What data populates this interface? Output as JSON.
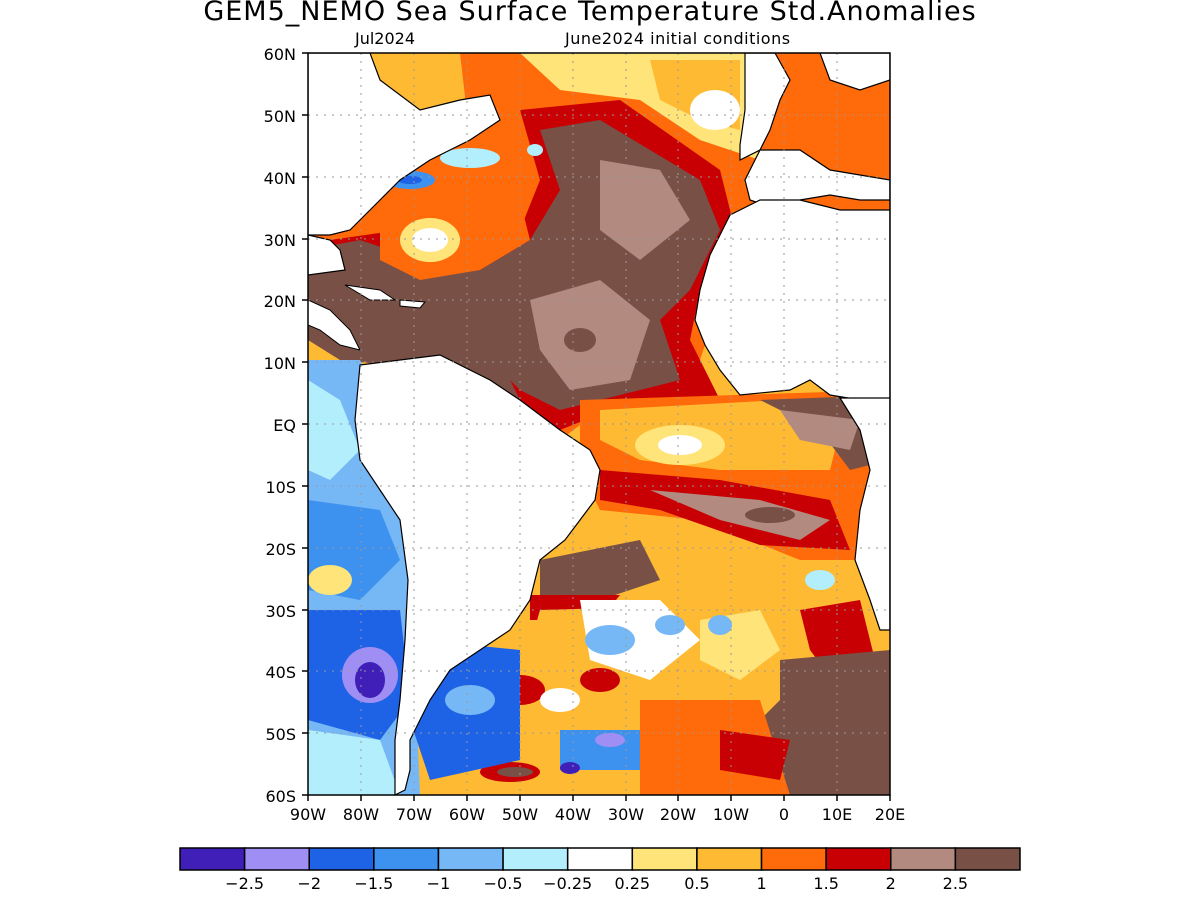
{
  "title": "GEM5_NEMO Sea Surface Temperature Std.Anomalies",
  "subtitle_left": "Jul2024",
  "subtitle_right": "June2024 initial conditions",
  "lat_labels": [
    "60N",
    "50N",
    "40N",
    "30N",
    "20N",
    "10N",
    "EQ",
    "10S",
    "20S",
    "30S",
    "40S",
    "50S",
    "60S"
  ],
  "lon_labels": [
    "90W",
    "80W",
    "70W",
    "60W",
    "50W",
    "40W",
    "30W",
    "20W",
    "10W",
    "0",
    "10E",
    "20E"
  ],
  "colorbar": {
    "labels": [
      "-2.5",
      "-2",
      "-1.5",
      "-1",
      "-0.5",
      "-0.25",
      "0.25",
      "0.5",
      "1",
      "1.5",
      "2",
      "2.5"
    ],
    "colors": [
      "#3f1fb8",
      "#9f8ff4",
      "#1e62e6",
      "#3d92f0",
      "#76b7f6",
      "#b2eefc",
      "#ffffff",
      "#ffe47a",
      "#ffba33",
      "#ff6a0a",
      "#c80004",
      "#b28a80",
      "#795046"
    ]
  }
}
